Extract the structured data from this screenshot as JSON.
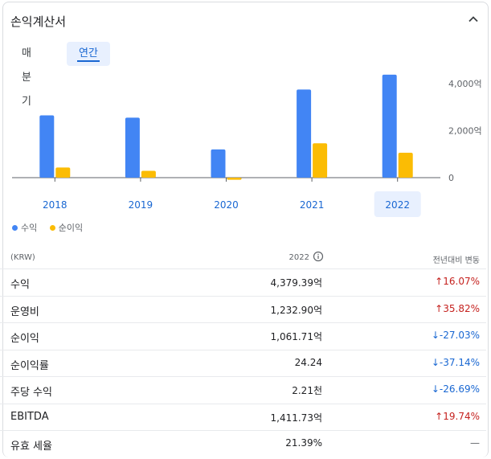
{
  "header": {
    "title": "손익계산서"
  },
  "tabs": [
    {
      "label": "매분기"
    },
    {
      "label": "연간"
    }
  ],
  "chart_data": {
    "type": "bar",
    "categories": [
      "2018",
      "2019",
      "2020",
      "2021",
      "2022"
    ],
    "selected_category": "2022",
    "series": [
      {
        "name": "수익",
        "color": "#4285f4",
        "values": [
          2650,
          2550,
          1200,
          3750,
          4379.39
        ]
      },
      {
        "name": "순이익",
        "color": "#fbbc04",
        "values": [
          430,
          290,
          -90,
          1460,
          1061.71
        ]
      }
    ],
    "y_ticks": [
      "4,000억",
      "2,000억",
      "0"
    ],
    "y_tick_values": [
      4000,
      2000,
      0
    ],
    "ylim": [
      -150,
      4500
    ],
    "legend": "bottom-left"
  },
  "table": {
    "col_currency": "(KRW)",
    "col_year": "2022",
    "col_change": "전년대비 변동",
    "rows": [
      {
        "name": "수익",
        "value": "4,379.39억",
        "change": "16.07%",
        "dir": "up"
      },
      {
        "name": "운영비",
        "value": "1,232.90억",
        "change": "35.82%",
        "dir": "up"
      },
      {
        "name": "순이익",
        "value": "1,061.71억",
        "change": "-27.03%",
        "dir": "down"
      },
      {
        "name": "순이익률",
        "value": "24.24",
        "change": "-37.14%",
        "dir": "down"
      },
      {
        "name": "주당 수익",
        "value": "2.21천",
        "change": "-26.69%",
        "dir": "down"
      },
      {
        "name": "EBITDA",
        "value": "1,411.73억",
        "change": "19.74%",
        "dir": "up"
      },
      {
        "name": "유효 세율",
        "value": "21.39%",
        "change": "—",
        "dir": "flat"
      }
    ]
  }
}
